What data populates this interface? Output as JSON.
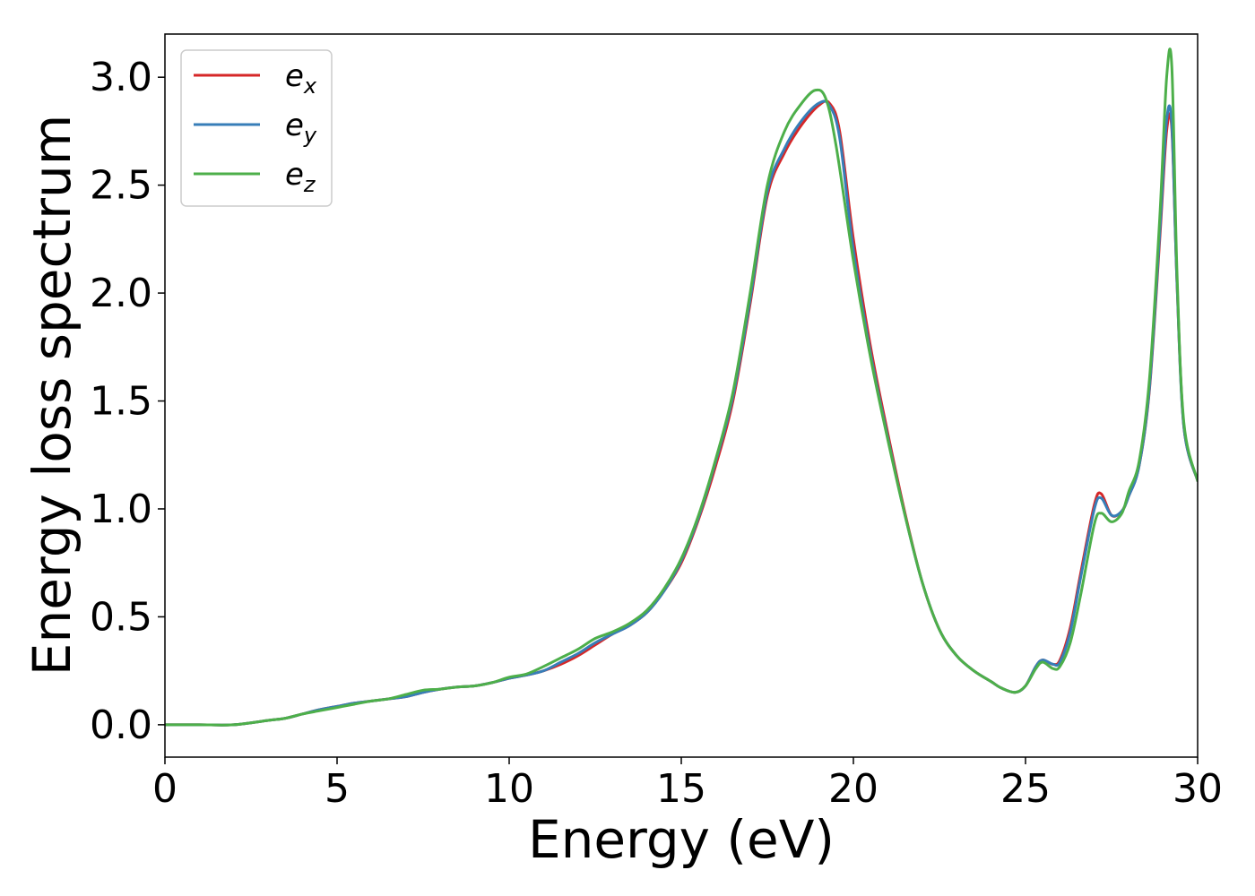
{
  "chart_data": {
    "type": "line",
    "xlabel": "Energy (eV)",
    "ylabel": "Energy loss spectrum",
    "xlim": [
      0,
      30
    ],
    "ylim": [
      -0.15,
      3.2
    ],
    "xticks": [
      0,
      5,
      10,
      15,
      20,
      25,
      30
    ],
    "xtick_labels": [
      "0",
      "5",
      "10",
      "15",
      "20",
      "25",
      "30"
    ],
    "yticks": [
      0.0,
      0.5,
      1.0,
      1.5,
      2.0,
      2.5,
      3.0
    ],
    "ytick_labels": [
      "0.0",
      "0.5",
      "1.0",
      "1.5",
      "2.0",
      "2.5",
      "3.0"
    ],
    "grid": false,
    "legend_position": "top-left",
    "series": [
      {
        "name": "e_x",
        "label_base": "e",
        "label_sub": "x",
        "color": "#d62728",
        "x": [
          0,
          1,
          2,
          3,
          3.5,
          4,
          4.5,
          5,
          5.5,
          6,
          6.5,
          7,
          7.5,
          8,
          8.5,
          9,
          9.5,
          10,
          10.5,
          11,
          11.5,
          12,
          12.5,
          13,
          13.5,
          14,
          14.5,
          15,
          15.5,
          16,
          16.5,
          17,
          17.5,
          18,
          18.5,
          19,
          19.3,
          19.6,
          20,
          20.5,
          21,
          21.5,
          22,
          22.5,
          23,
          23.5,
          24,
          24.3,
          24.7,
          25,
          25.3,
          25.5,
          25.8,
          26,
          26.3,
          26.6,
          27,
          27.2,
          27.5,
          27.8,
          28,
          28.3,
          28.6,
          28.9,
          29.1,
          29.25,
          29.4,
          29.6,
          30
        ],
        "y": [
          0,
          0,
          0,
          0.02,
          0.03,
          0.05,
          0.07,
          0.085,
          0.1,
          0.11,
          0.12,
          0.13,
          0.15,
          0.165,
          0.175,
          0.18,
          0.195,
          0.215,
          0.23,
          0.25,
          0.28,
          0.32,
          0.37,
          0.42,
          0.46,
          0.52,
          0.62,
          0.75,
          0.95,
          1.2,
          1.5,
          1.95,
          2.45,
          2.65,
          2.78,
          2.87,
          2.88,
          2.75,
          2.25,
          1.75,
          1.35,
          0.98,
          0.66,
          0.44,
          0.32,
          0.25,
          0.2,
          0.17,
          0.15,
          0.18,
          0.27,
          0.3,
          0.28,
          0.3,
          0.45,
          0.7,
          1.02,
          1.07,
          0.97,
          0.99,
          1.06,
          1.2,
          1.55,
          2.25,
          2.75,
          2.76,
          2.05,
          1.38,
          1.13
        ]
      },
      {
        "name": "e_y",
        "label_base": "e",
        "label_sub": "y",
        "color": "#377eb8",
        "x": [
          0,
          1,
          2,
          3,
          3.5,
          4,
          4.5,
          5,
          5.5,
          6,
          6.5,
          7,
          7.5,
          8,
          8.5,
          9,
          9.5,
          10,
          10.5,
          11,
          11.5,
          12,
          12.5,
          13,
          13.5,
          14,
          14.5,
          15,
          15.5,
          16,
          16.5,
          17,
          17.5,
          18,
          18.5,
          19,
          19.3,
          19.6,
          20,
          20.5,
          21,
          21.5,
          22,
          22.5,
          23,
          23.5,
          24,
          24.3,
          24.7,
          25,
          25.3,
          25.5,
          25.8,
          26,
          26.3,
          26.6,
          27,
          27.2,
          27.5,
          27.8,
          28,
          28.3,
          28.6,
          28.9,
          29.1,
          29.25,
          29.4,
          29.6,
          30
        ],
        "y": [
          0,
          0,
          0,
          0.02,
          0.03,
          0.05,
          0.07,
          0.085,
          0.1,
          0.11,
          0.12,
          0.13,
          0.15,
          0.165,
          0.175,
          0.18,
          0.195,
          0.215,
          0.23,
          0.25,
          0.29,
          0.33,
          0.38,
          0.42,
          0.46,
          0.52,
          0.62,
          0.76,
          0.96,
          1.22,
          1.52,
          1.97,
          2.47,
          2.67,
          2.8,
          2.88,
          2.87,
          2.72,
          2.2,
          1.72,
          1.33,
          0.97,
          0.66,
          0.44,
          0.32,
          0.25,
          0.2,
          0.17,
          0.15,
          0.18,
          0.27,
          0.3,
          0.28,
          0.29,
          0.43,
          0.68,
          1.0,
          1.05,
          0.97,
          0.99,
          1.06,
          1.2,
          1.56,
          2.28,
          2.8,
          2.78,
          2.05,
          1.38,
          1.13
        ]
      },
      {
        "name": "e_z",
        "label_base": "e",
        "label_sub": "z",
        "color": "#4daf4a",
        "x": [
          0,
          1,
          2,
          3,
          3.5,
          4,
          4.5,
          5,
          5.5,
          6,
          6.5,
          7,
          7.5,
          8,
          8.5,
          9,
          9.5,
          10,
          10.5,
          11,
          11.5,
          12,
          12.5,
          13,
          13.5,
          14,
          14.5,
          15,
          15.5,
          16,
          16.5,
          17,
          17.5,
          18,
          18.5,
          18.9,
          19.2,
          19.5,
          20,
          20.5,
          21,
          21.5,
          22,
          22.5,
          23,
          23.5,
          24,
          24.3,
          24.7,
          25,
          25.3,
          25.5,
          25.8,
          26,
          26.3,
          26.6,
          27,
          27.2,
          27.5,
          27.8,
          28,
          28.3,
          28.6,
          28.9,
          29.1,
          29.25,
          29.4,
          29.6,
          30
        ],
        "y": [
          0,
          0,
          0,
          0.02,
          0.03,
          0.05,
          0.065,
          0.08,
          0.095,
          0.11,
          0.12,
          0.14,
          0.16,
          0.165,
          0.175,
          0.18,
          0.195,
          0.22,
          0.235,
          0.27,
          0.31,
          0.35,
          0.4,
          0.43,
          0.47,
          0.53,
          0.63,
          0.77,
          0.97,
          1.23,
          1.54,
          2.0,
          2.5,
          2.75,
          2.88,
          2.94,
          2.9,
          2.68,
          2.15,
          1.7,
          1.32,
          0.97,
          0.66,
          0.44,
          0.32,
          0.25,
          0.2,
          0.17,
          0.15,
          0.18,
          0.26,
          0.29,
          0.26,
          0.27,
          0.38,
          0.6,
          0.93,
          0.98,
          0.94,
          0.98,
          1.08,
          1.22,
          1.6,
          2.35,
          3.0,
          3.05,
          2.1,
          1.4,
          1.13
        ]
      }
    ]
  }
}
